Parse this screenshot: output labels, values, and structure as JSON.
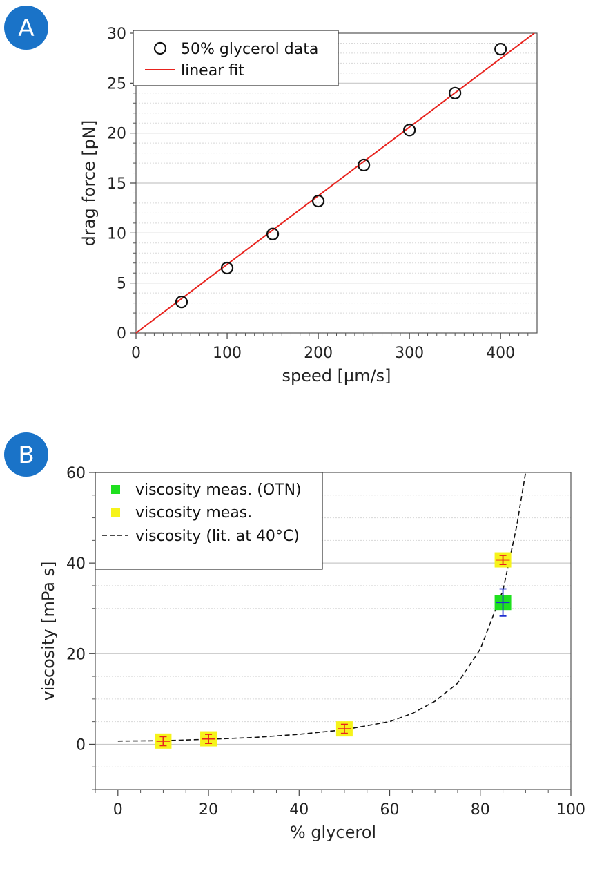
{
  "colors": {
    "badge": "#1a73c8",
    "fit_line": "#e8231e",
    "otn_marker": "#1fe01f",
    "meas_marker": "#f6f31a",
    "cross_red": "#e8231e",
    "cross_blue": "#2030d0",
    "grid_major": "#c8c8c8",
    "grid_minor": "#d8d8d8"
  },
  "chart_data": [
    {
      "panel": "A",
      "type": "scatter",
      "xlabel": "speed [µm/s]",
      "ylabel": "drag force [pN]",
      "xlim": [
        0,
        440
      ],
      "ylim": [
        0,
        30
      ],
      "xticks": [
        "0",
        "100",
        "200",
        "300",
        "400"
      ],
      "yticks": [
        "0",
        "5",
        "10",
        "15",
        "20",
        "25",
        "30"
      ],
      "grid": true,
      "legend_position": "top-left",
      "series": [
        {
          "name": "50% glycerol data",
          "kind": "scatter",
          "marker": "open-circle",
          "x": [
            50,
            100,
            150,
            200,
            250,
            300,
            350,
            400
          ],
          "y": [
            3.1,
            6.5,
            9.9,
            13.2,
            16.8,
            20.3,
            24.0,
            28.4
          ]
        },
        {
          "name": "linear fit",
          "kind": "line",
          "x": [
            0,
            437
          ],
          "y": [
            0,
            30
          ]
        }
      ]
    },
    {
      "panel": "B",
      "type": "scatter",
      "xlabel": "% glycerol",
      "ylabel": "viscosity [mPa s]",
      "xlim": [
        -5,
        100
      ],
      "ylim": [
        -10,
        60
      ],
      "xticks": [
        "0",
        "20",
        "40",
        "60",
        "80",
        "100"
      ],
      "yticks": [
        "0",
        "20",
        "40",
        "60"
      ],
      "grid": true,
      "legend_position": "top-left",
      "series": [
        {
          "name": "viscosity meas. (OTN)",
          "kind": "scatter",
          "marker": "filled-square",
          "x": [
            85
          ],
          "y": [
            31.3
          ],
          "yerr": [
            3.0
          ],
          "xerr": [
            1.5
          ]
        },
        {
          "name": "viscosity meas.",
          "kind": "scatter",
          "marker": "filled-square",
          "x": [
            10,
            20,
            50,
            85
          ],
          "y": [
            0.7,
            1.2,
            3.4,
            40.7
          ],
          "xerr": [
            1.5,
            1.5,
            1.5,
            1.5
          ],
          "yerr": [
            1.0,
            1.0,
            1.0,
            1.0
          ]
        },
        {
          "name": "viscosity (lit. at 40°C)",
          "kind": "dashed-line",
          "x": [
            0,
            10,
            20,
            30,
            40,
            50,
            60,
            65,
            70,
            75,
            80,
            85,
            88,
            90
          ],
          "y": [
            0.7,
            0.8,
            1.1,
            1.5,
            2.2,
            3.2,
            5.0,
            6.8,
            9.5,
            13.5,
            21.0,
            34.0,
            48.0,
            60.0
          ]
        }
      ]
    }
  ],
  "labels": {
    "panel_a": "A",
    "panel_b": "B"
  }
}
